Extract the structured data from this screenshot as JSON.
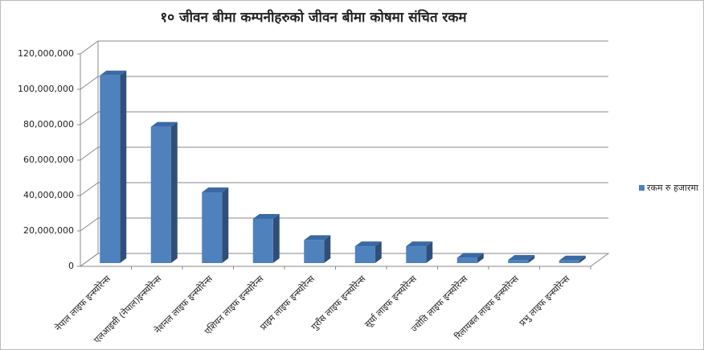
{
  "chart_data": {
    "type": "bar",
    "title": "१० जीवन बीमा कम्पनीहरुको जीवन बीमा कोषमा संचित रकम",
    "categories": [
      "नेपाल लाइफ इन्स्योरेन्स",
      "एलआइसी (नेपाल)इन्स्योरेन्स",
      "नेशनल लाइफ इन्स्योरेन्स",
      "एशियन लाइफ इन्स्योरेन्स",
      "प्राइम लाइफ इन्स्योरेन्स",
      "गुराँस लाइफ इन्स्योरेन्स",
      "सूर्या लाइफ इन्स्योरेन्स",
      "ज्योति लाइफ इन्स्योरेन्स",
      "रिलायबल लाइफ इन्स्योरेन्स",
      "प्रभु लाइफ इन्स्योरेन्स"
    ],
    "series": [
      {
        "name": "रकम रु हजारमा",
        "color": "#4f81bd",
        "values": [
          106000000,
          77000000,
          40000000,
          25000000,
          13000000,
          9500000,
          9500000,
          3000000,
          1800000,
          1500000
        ]
      }
    ],
    "ylim": [
      0,
      120000000
    ],
    "yticks": [
      {
        "value": 0,
        "label": "0"
      },
      {
        "value": 20000000,
        "label": "20,000,000"
      },
      {
        "value": 40000000,
        "label": "40,000,000"
      },
      {
        "value": 60000000,
        "label": "60,000,000"
      },
      {
        "value": 80000000,
        "label": "80,000,000"
      },
      {
        "value": 100000000,
        "label": "100,000,000"
      },
      {
        "value": 120000000,
        "label": "120,000,000"
      }
    ],
    "grid": true,
    "legend": "right"
  }
}
